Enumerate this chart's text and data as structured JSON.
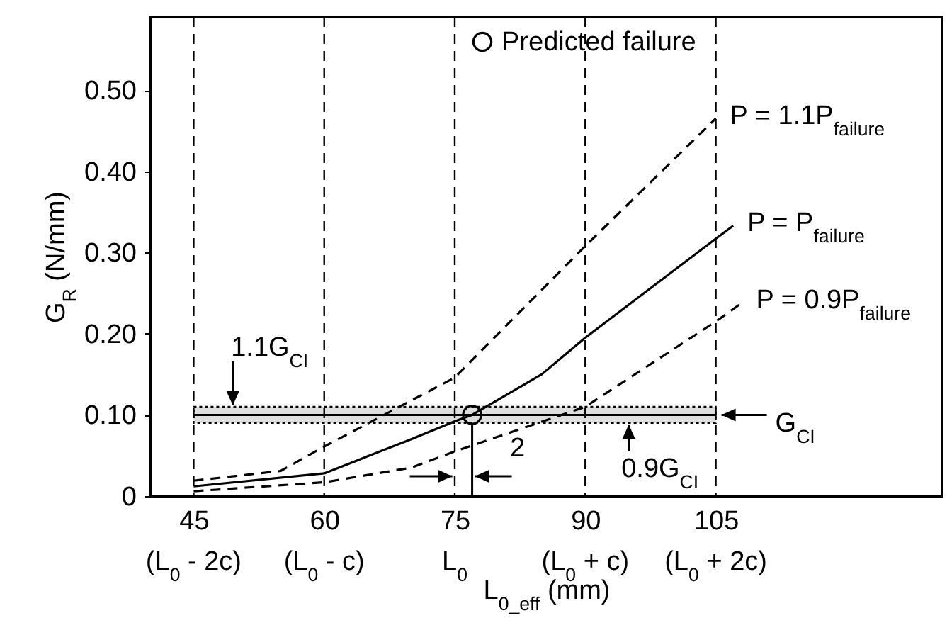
{
  "chart_data": {
    "type": "line",
    "xlabel": "L$_{0_eff}$ (mm)",
    "ylabel": "G$_{R}$ (N/mm)",
    "xlim": [
      40,
      131
    ],
    "ylim": [
      0,
      0.59
    ],
    "xticks": [
      45,
      60,
      75,
      90,
      105
    ],
    "yticks": [
      0,
      {
        "value": 0.1,
        "label": "0.10"
      },
      {
        "value": 0.2,
        "label": "0.20"
      },
      {
        "value": 0.3,
        "label": "0.30"
      },
      {
        "value": 0.4,
        "label": "0.40"
      },
      {
        "value": 0.5,
        "label": "0.50"
      }
    ],
    "series": [
      {
        "name": "P = 1.1P$_{failure}$",
        "color": "#000000",
        "line_style": "dashed",
        "marker": "none",
        "x": [
          45,
          55,
          60,
          75,
          90,
          105
        ],
        "values": [
          0.019,
          0.031,
          0.061,
          0.146,
          0.308,
          0.465
        ]
      },
      {
        "name": "P = P$_{failure}$",
        "color": "#000000",
        "line_style": "solid",
        "marker": "none",
        "x": [
          45,
          60,
          65,
          70,
          75,
          77,
          85,
          90,
          105,
          107
        ],
        "values": [
          0.012,
          0.028,
          0.049,
          0.07,
          0.092,
          0.1,
          0.15,
          0.195,
          0.317,
          0.333
        ]
      },
      {
        "name": "P = 0.9P$_{failure}$",
        "color": "#000000",
        "line_style": "dashed",
        "marker": "none",
        "x": [
          45,
          60,
          70,
          75,
          90,
          105,
          108
        ],
        "values": [
          0.006,
          0.017,
          0.035,
          0.055,
          0.11,
          0.215,
          0.238
        ]
      },
      {
        "name": "Predicted failure",
        "type": "scatter",
        "color": "#000000",
        "marker": "circle",
        "x": [
          77
        ],
        "values": [
          0.1
        ]
      }
    ],
    "legend": "top",
    "ref_lines": [
      {
        "axis": "x",
        "value": 45,
        "line_style": "dashed"
      },
      {
        "axis": "x",
        "value": 60,
        "line_style": "dashed"
      },
      {
        "axis": "x",
        "value": 75,
        "line_style": "dashed"
      },
      {
        "axis": "x",
        "value": 90,
        "line_style": "dashed"
      },
      {
        "axis": "x",
        "value": 105,
        "line_style": "dashed"
      },
      {
        "axis": "y",
        "value": 0.1,
        "line_style": "solid"
      }
    ],
    "bands": [
      {
        "axis": "y",
        "from": 0.09,
        "to": 0.11
      }
    ],
    "annotations": [
      {
        "text": "1.1G$_{CI}$",
        "x": 49.5,
        "y": 0.11
      },
      {
        "text": "0.9G$_{CI}$",
        "x": 95,
        "y": 0.09
      },
      {
        "text": "G$_{CI}$",
        "x": 105,
        "y": 0.1
      },
      "2",
      "(L$_{0}$ - 2c)",
      "(L$_{0}$ - c)",
      "L$_{0}$",
      "(L$_{0}$ + c)",
      "(L$_{0}$ + 2c)"
    ]
  }
}
